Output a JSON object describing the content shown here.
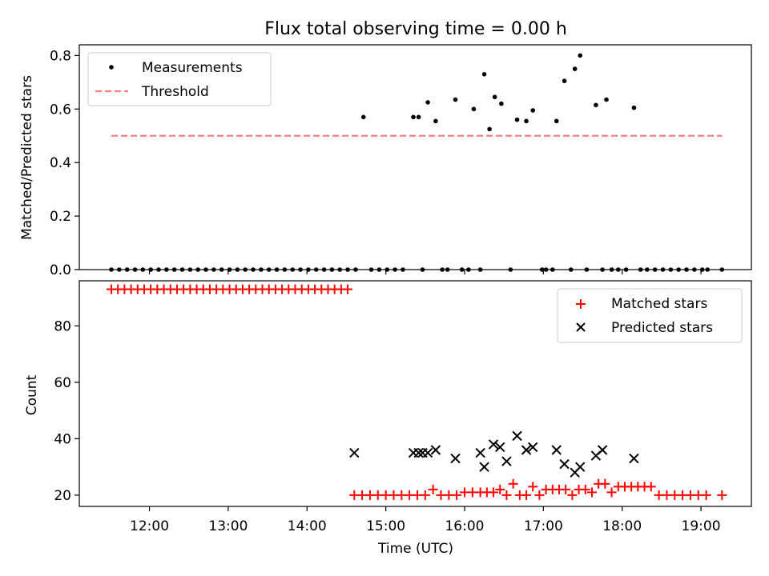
{
  "chart_data": [
    {
      "type": "scatter",
      "title": "Flux total observing time = 0.00 h",
      "xlabel": "",
      "ylabel": "Matched/Predicted stars",
      "ylim": [
        0,
        0.84
      ],
      "yticks": [
        "0.0",
        "0.2",
        "0.4",
        "0.6",
        "0.8"
      ],
      "ytick_values": [
        0,
        0.2,
        0.4,
        0.6,
        0.8
      ],
      "xlim_hours": [
        11.11,
        19.64
      ],
      "x_tick_hours": [
        12,
        13,
        14,
        15,
        16,
        17,
        18,
        19
      ],
      "legend_position": "upper-left",
      "series": [
        {
          "name": "Measurements",
          "style": "dot",
          "color": "#000000",
          "x": [
            "11:31",
            "11:37",
            "11:43",
            "11:49",
            "11:55",
            "12:01",
            "12:07",
            "12:13",
            "12:19",
            "12:25",
            "12:31",
            "12:37",
            "12:43",
            "12:49",
            "12:55",
            "13:01",
            "13:07",
            "13:13",
            "13:19",
            "13:25",
            "13:31",
            "13:37",
            "13:43",
            "13:49",
            "13:55",
            "14:01",
            "14:07",
            "14:13",
            "14:19",
            "14:25",
            "14:31",
            "14:37",
            "14:43",
            "14:49",
            "14:55",
            "15:01",
            "15:07",
            "15:13",
            "15:21",
            "15:25",
            "15:28",
            "15:32",
            "15:38",
            "15:43",
            "15:47",
            "15:53",
            "15:58",
            "16:03",
            "16:07",
            "16:12",
            "16:15",
            "16:19",
            "16:23",
            "16:28",
            "16:35",
            "16:40",
            "16:47",
            "16:52",
            "16:59",
            "17:02",
            "17:07",
            "17:10",
            "17:16",
            "17:21",
            "17:24",
            "17:28",
            "17:33",
            "17:40",
            "17:45",
            "17:48",
            "17:52",
            "17:57",
            "18:03",
            "18:09",
            "18:14",
            "18:19",
            "18:25",
            "18:31",
            "18:37",
            "18:43",
            "18:49",
            "18:55",
            "19:01",
            "19:05",
            "19:16"
          ],
          "y": [
            0,
            0,
            0,
            0,
            0,
            0,
            0,
            0,
            0,
            0,
            0,
            0,
            0,
            0,
            0,
            0,
            0,
            0,
            0,
            0,
            0,
            0,
            0,
            0,
            0,
            0,
            0,
            0,
            0,
            0,
            0,
            0,
            0.57,
            0,
            0,
            0,
            0,
            0,
            0.57,
            0.57,
            0,
            0.625,
            0.555,
            0,
            0,
            0.635,
            0,
            0,
            0.6,
            0,
            0.73,
            0.525,
            0.645,
            0.62,
            0,
            0.56,
            0.555,
            0.595,
            0,
            0,
            0,
            0.555,
            0.705,
            0,
            0.75,
            0.8,
            0,
            0.615,
            0,
            0.635,
            0,
            0,
            0,
            0.605,
            0,
            0,
            0,
            0,
            0,
            0,
            0,
            0,
            0,
            0,
            0
          ]
        },
        {
          "name": "Threshold",
          "style": "dashed",
          "color": "#ff7f7f",
          "x": [
            "11:31",
            "19:16"
          ],
          "y": [
            0.5,
            0.5
          ]
        }
      ]
    },
    {
      "type": "scatter",
      "title": "",
      "xlabel": "Time (UTC)",
      "ylabel": "Count",
      "ylim": [
        16,
        96
      ],
      "yticks": [
        "20",
        "40",
        "60",
        "80"
      ],
      "ytick_values": [
        20,
        40,
        60,
        80
      ],
      "xlim_hours": [
        11.11,
        19.64
      ],
      "x_tick_labels": [
        "12:00",
        "13:00",
        "14:00",
        "15:00",
        "16:00",
        "17:00",
        "18:00",
        "19:00"
      ],
      "x_tick_hours": [
        12,
        13,
        14,
        15,
        16,
        17,
        18,
        19
      ],
      "legend_position": "upper-right",
      "series": [
        {
          "name": "Matched stars",
          "style": "plus",
          "color": "#ff0000",
          "x": [
            "11:31",
            "11:36",
            "11:41",
            "11:46",
            "11:51",
            "11:56",
            "12:01",
            "12:06",
            "12:11",
            "12:16",
            "12:21",
            "12:26",
            "12:31",
            "12:36",
            "12:41",
            "12:46",
            "12:51",
            "12:56",
            "13:01",
            "13:06",
            "13:11",
            "13:16",
            "13:21",
            "13:26",
            "13:31",
            "13:36",
            "13:41",
            "13:46",
            "13:51",
            "13:56",
            "14:01",
            "14:06",
            "14:11",
            "14:16",
            "14:21",
            "14:26",
            "14:31",
            "14:36",
            "14:42",
            "14:48",
            "14:54",
            "15:00",
            "15:06",
            "15:12",
            "15:18",
            "15:24",
            "15:30",
            "15:36",
            "15:42",
            "15:48",
            "15:54",
            "16:00",
            "16:06",
            "16:12",
            "16:17",
            "16:22",
            "16:27",
            "16:32",
            "16:37",
            "16:42",
            "16:47",
            "16:52",
            "16:57",
            "17:02",
            "17:07",
            "17:12",
            "17:17",
            "17:22",
            "17:27",
            "17:32",
            "17:37",
            "17:42",
            "17:47",
            "17:52",
            "17:57",
            "18:02",
            "18:07",
            "18:12",
            "18:17",
            "18:22",
            "18:28",
            "18:34",
            "18:40",
            "18:46",
            "18:52",
            "18:58",
            "19:04",
            "19:16"
          ],
          "y": [
            93,
            93,
            93,
            93,
            93,
            93,
            93,
            93,
            93,
            93,
            93,
            93,
            93,
            93,
            93,
            93,
            93,
            93,
            93,
            93,
            93,
            93,
            93,
            93,
            93,
            93,
            93,
            93,
            93,
            93,
            93,
            93,
            93,
            93,
            93,
            93,
            93,
            20,
            20,
            20,
            20,
            20,
            20,
            20,
            20,
            20,
            20,
            22,
            20,
            20,
            20,
            21,
            21,
            21,
            21,
            21,
            22,
            20,
            24,
            20,
            20,
            23,
            20,
            22,
            22,
            22,
            22,
            20,
            22,
            22,
            21,
            24,
            24,
            21,
            23,
            23,
            23,
            23,
            23,
            23,
            20,
            20,
            20,
            20,
            20,
            20,
            20,
            20
          ]
        },
        {
          "name": "Predicted stars",
          "style": "x",
          "color": "#000000",
          "x": [
            "14:36",
            "15:21",
            "15:25",
            "15:28",
            "15:32",
            "15:38",
            "15:53",
            "16:12",
            "16:15",
            "16:22",
            "16:27",
            "16:32",
            "16:40",
            "16:47",
            "16:52",
            "17:10",
            "17:16",
            "17:24",
            "17:28",
            "17:40",
            "17:45",
            "18:09"
          ],
          "y": [
            35,
            35,
            35,
            35,
            35,
            36,
            33,
            35,
            30,
            38,
            37,
            32,
            41,
            36,
            37,
            36,
            31,
            28,
            30,
            34,
            36,
            33
          ]
        }
      ]
    }
  ]
}
